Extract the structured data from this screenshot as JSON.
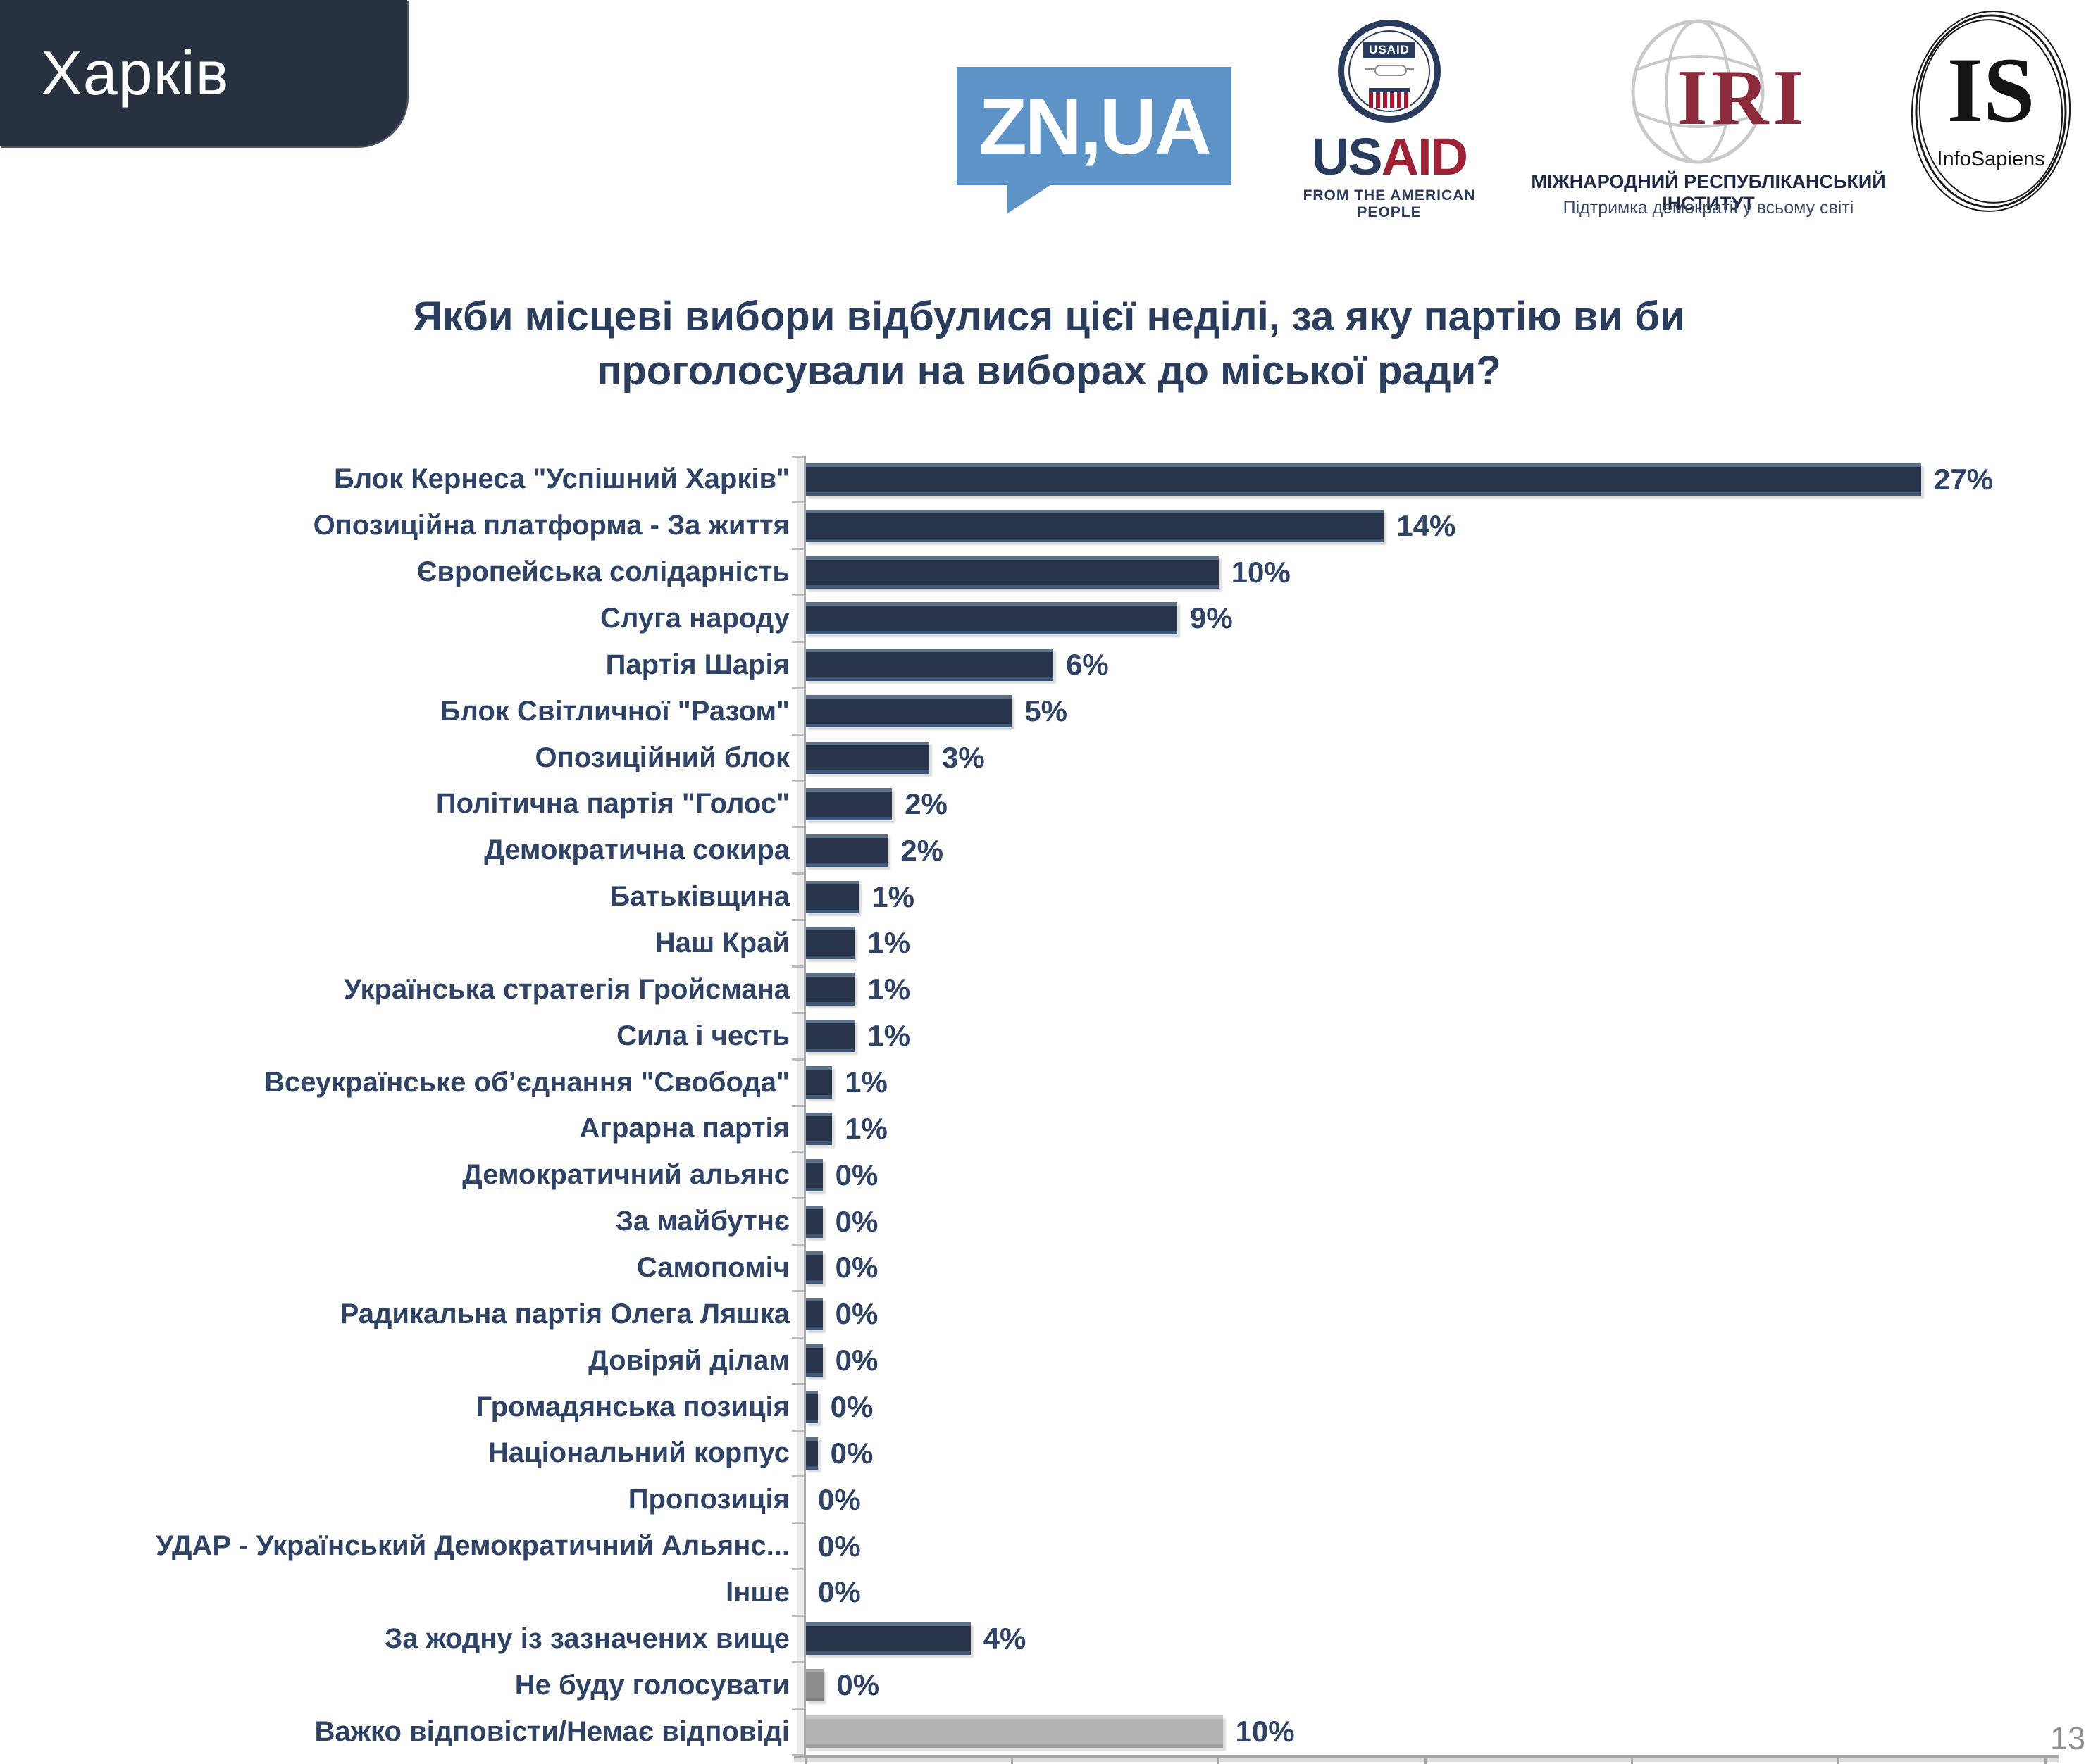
{
  "header": {
    "city": "Харків",
    "logos": {
      "znua": {
        "label": "ZN,UA"
      },
      "usaid": {
        "seal_label": "USAID",
        "wordmark_us": "US",
        "wordmark_aid": "AID",
        "tagline": "FROM THE AMERICAN PEOPLE"
      },
      "iri": {
        "abbr": "IRI",
        "line1": "МІЖНАРОДНИЙ РЕСПУБЛІКАНСЬКИЙ ІНСТИТУТ",
        "line2": "Підтримка демократії у всьому світі"
      },
      "infosapiens": {
        "abbr": "IS",
        "name": "InfoSapiens"
      }
    }
  },
  "title": {
    "line1": "Якби місцеві вибори відбулися цієї неділі, за яку партію ви би",
    "line2": "проголосували на виборах до міської ради?"
  },
  "page_number": "13",
  "colors": {
    "navy": {
      "top": "#5C7089",
      "body": "#28344A",
      "bottom": "#3E5678"
    },
    "grayDark": {
      "top": "#A8A8A8",
      "body": "#8D8D8D",
      "bottom": "#7C7C7C"
    },
    "grayLight": {
      "top": "#C9C9C9",
      "body": "#B3B3B3",
      "bottom": "#A0A0A0"
    }
  },
  "chart_data": {
    "type": "bar",
    "orientation": "horizontal",
    "xlim": [
      0,
      30
    ],
    "x_ticks": [
      "0%",
      "5%",
      "10%",
      "15%",
      "20%",
      "25%",
      "30%"
    ],
    "grid": false,
    "legend": false,
    "rows": [
      {
        "label": "Блок Кернеса \"Успішний Харків\"",
        "value": 27,
        "bar": 27,
        "color": "navy"
      },
      {
        "label": "Опозиційна платформа - За життя",
        "value": 14,
        "bar": 14,
        "color": "navy"
      },
      {
        "label": "Європейська солідарність",
        "value": 10,
        "bar": 10,
        "color": "navy"
      },
      {
        "label": "Слуга народу",
        "value": 9,
        "bar": 9,
        "color": "navy"
      },
      {
        "label": "Партія Шарія",
        "value": 6,
        "bar": 6,
        "color": "navy"
      },
      {
        "label": "Блок Світличної \"Разом\"",
        "value": 5,
        "bar": 5,
        "color": "navy"
      },
      {
        "label": "Опозиційний блок",
        "value": 3,
        "bar": 3,
        "color": "navy"
      },
      {
        "label": "Політична партія \"Голос\"",
        "value": 2,
        "bar": 2.1,
        "color": "navy"
      },
      {
        "label": "Демократична сокира",
        "value": 2,
        "bar": 2.0,
        "color": "navy"
      },
      {
        "label": "Батьківщина",
        "value": 1,
        "bar": 1.3,
        "color": "navy"
      },
      {
        "label": "Наш Край",
        "value": 1,
        "bar": 1.2,
        "color": "navy"
      },
      {
        "label": "Українська стратегія Гройсмана",
        "value": 1,
        "bar": 1.2,
        "color": "navy"
      },
      {
        "label": "Сила і честь",
        "value": 1,
        "bar": 1.2,
        "color": "navy"
      },
      {
        "label": "Всеукраїнське об’єднання \"Свобода\"",
        "value": 1,
        "bar": 0.65,
        "color": "navy"
      },
      {
        "label": "Аграрна партія",
        "value": 1,
        "bar": 0.65,
        "color": "navy"
      },
      {
        "label": "Демократичний альянс",
        "value": 0,
        "bar": 0.42,
        "color": "navy"
      },
      {
        "label": "За майбутнє",
        "value": 0,
        "bar": 0.42,
        "color": "navy"
      },
      {
        "label": "Самопоміч",
        "value": 0,
        "bar": 0.42,
        "color": "navy"
      },
      {
        "label": "Радикальна партія Олега Ляшка",
        "value": 0,
        "bar": 0.42,
        "color": "navy"
      },
      {
        "label": "Довіряй ділам",
        "value": 0,
        "bar": 0.42,
        "color": "navy"
      },
      {
        "label": "Громадянська позиція",
        "value": 0,
        "bar": 0.3,
        "color": "navy"
      },
      {
        "label": "Національний корпус",
        "value": 0,
        "bar": 0.3,
        "color": "navy"
      },
      {
        "label": "Пропозиція",
        "value": 0,
        "bar": 0,
        "color": "navy"
      },
      {
        "label": "УДАР - Український Демократичний Альянс...",
        "value": 0,
        "bar": 0,
        "color": "navy"
      },
      {
        "label": "Інше",
        "value": 0,
        "bar": 0,
        "color": "navy"
      },
      {
        "label": "За жодну із зазначених вище",
        "value": 4,
        "bar": 4,
        "color": "navy"
      },
      {
        "label": "Не буду голосувати",
        "value": 0,
        "bar": 0.45,
        "color": "grayDark"
      },
      {
        "label": "Важко відповісти/Немає відповіді",
        "value": 10,
        "bar": 10.1,
        "color": "grayLight"
      }
    ]
  }
}
